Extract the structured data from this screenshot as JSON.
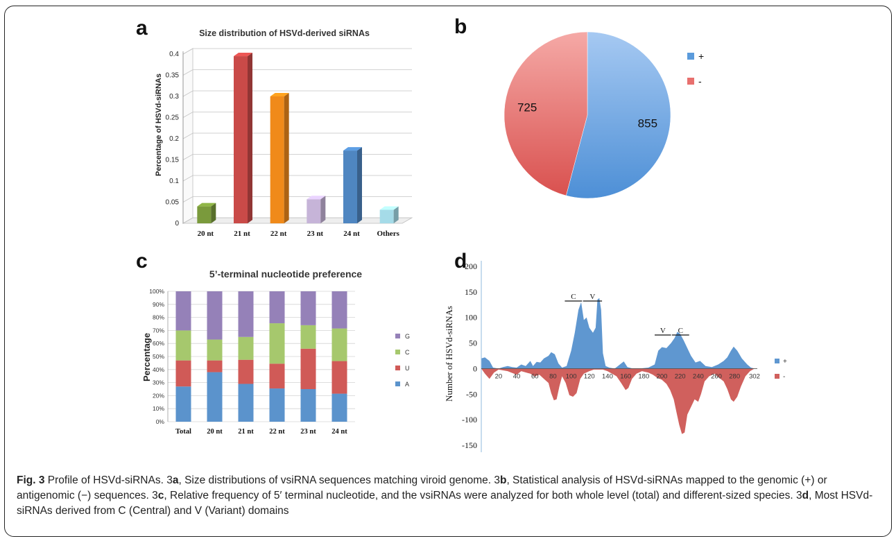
{
  "panels": {
    "a": {
      "letter": "a",
      "chart_data": {
        "type": "bar",
        "title": "Size distribution of HSVd-derived siRNAs",
        "ylabel": "Percentage of HSVd-siRNAs",
        "xlabel": "",
        "categories": [
          "20 nt",
          "21 nt",
          "22 nt",
          "23 nt",
          "24 nt",
          "Others"
        ],
        "values": [
          0.04,
          0.395,
          0.3,
          0.057,
          0.172,
          0.032
        ],
        "colors": [
          "#7a9a3c",
          "#c94a48",
          "#f08a1a",
          "#c6b4d8",
          "#4f86c1",
          "#a5dbe8"
        ],
        "ylim": [
          0,
          0.4
        ],
        "yticks": [
          "0",
          "0.05",
          "0.1",
          "0.15",
          "0.2",
          "0.25",
          "0.3",
          "0.35",
          "0.4"
        ],
        "grid": true,
        "style": "3d"
      }
    },
    "b": {
      "letter": "b",
      "chart_data": {
        "type": "pie",
        "categories": [
          "+",
          "-"
        ],
        "values": [
          855,
          725
        ],
        "colors": [
          "#5b9bdc",
          "#e8706e"
        ],
        "legend": "top-right"
      }
    },
    "c": {
      "letter": "c",
      "chart_data": {
        "type": "bar",
        "stacked": true,
        "title": "5’-terminal nucleotide preference",
        "ylabel": "Percentage",
        "xlabel": "",
        "categories": [
          "Total",
          "20 nt",
          "21 nt",
          "22 nt",
          "23 nt",
          "24 nt"
        ],
        "yticks": [
          "0%",
          "10%",
          "20%",
          "30%",
          "40%",
          "50%",
          "60%",
          "70%",
          "80%",
          "90%",
          "100%"
        ],
        "series": [
          {
            "name": "A",
            "color": "#5b93cc",
            "values": [
              27,
              38,
              29,
              25.5,
              25,
              21.5
            ]
          },
          {
            "name": "U",
            "color": "#d05a57",
            "values": [
              20,
              9,
              18.5,
              19,
              31,
              25
            ]
          },
          {
            "name": "C",
            "color": "#a6c86d",
            "values": [
              23,
              16,
              17.5,
              31,
              18,
              25
            ]
          },
          {
            "name": "G",
            "color": "#9581b8",
            "values": [
              30,
              37,
              35,
              24.5,
              26,
              28.5
            ]
          }
        ],
        "legend_order": [
          "G",
          "C",
          "U",
          "A"
        ],
        "legend": "right"
      }
    },
    "d": {
      "letter": "d",
      "chart_data": {
        "type": "area",
        "ylabel": "Number of HSVd-siRNAs",
        "xlabel": "",
        "xlim": [
          1,
          302
        ],
        "ylim": [
          -150,
          200
        ],
        "yticks": [
          "200",
          "150",
          "100",
          "50",
          "0",
          "-50",
          "-100",
          "-150"
        ],
        "xticks": [
          "20",
          "40",
          "60",
          "80",
          "100",
          "120",
          "140",
          "160",
          "180",
          "200",
          "220",
          "240",
          "260",
          "280",
          "302"
        ],
        "legend": "right",
        "annotations": [
          {
            "label": "C",
            "x_start": 93,
            "x_end": 112
          },
          {
            "label": "V",
            "x_start": 113,
            "x_end": 134
          },
          {
            "label": "V",
            "x_start": 192,
            "x_end": 210
          },
          {
            "label": "C",
            "x_start": 211,
            "x_end": 230
          }
        ],
        "series": [
          {
            "name": "+",
            "color": "#5f97d0",
            "points": [
              [
                1,
                20
              ],
              [
                5,
                22
              ],
              [
                10,
                15
              ],
              [
                14,
                2
              ],
              [
                20,
                0
              ],
              [
                25,
                3
              ],
              [
                30,
                5
              ],
              [
                35,
                3
              ],
              [
                40,
                2
              ],
              [
                45,
                8
              ],
              [
                50,
                5
              ],
              [
                55,
                15
              ],
              [
                58,
                5
              ],
              [
                62,
                13
              ],
              [
                66,
                12
              ],
              [
                70,
                20
              ],
              [
                75,
                25
              ],
              [
                78,
                32
              ],
              [
                82,
                28
              ],
              [
                86,
                10
              ],
              [
                90,
                2
              ],
              [
                95,
                5
              ],
              [
                100,
                35
              ],
              [
                104,
                70
              ],
              [
                108,
                115
              ],
              [
                111,
                130
              ],
              [
                114,
                95
              ],
              [
                117,
                100
              ],
              [
                120,
                80
              ],
              [
                124,
                70
              ],
              [
                127,
                80
              ],
              [
                129,
                135
              ],
              [
                131,
                138
              ],
              [
                133,
                115
              ],
              [
                135,
                30
              ],
              [
                138,
                5
              ],
              [
                142,
                2
              ],
              [
                148,
                0
              ],
              [
                155,
                10
              ],
              [
                158,
                14
              ],
              [
                162,
                3
              ],
              [
                168,
                0
              ],
              [
                175,
                0
              ],
              [
                185,
                2
              ],
              [
                192,
                8
              ],
              [
                196,
                35
              ],
              [
                200,
                42
              ],
              [
                205,
                40
              ],
              [
                210,
                50
              ],
              [
                214,
                60
              ],
              [
                217,
                72
              ],
              [
                220,
                68
              ],
              [
                224,
                55
              ],
              [
                228,
                40
              ],
              [
                232,
                25
              ],
              [
                237,
                12
              ],
              [
                242,
                15
              ],
              [
                248,
                5
              ],
              [
                255,
                3
              ],
              [
                262,
                8
              ],
              [
                268,
                15
              ],
              [
                272,
                22
              ],
              [
                276,
                35
              ],
              [
                279,
                43
              ],
              [
                283,
                35
              ],
              [
                288,
                20
              ],
              [
                294,
                8
              ],
              [
                298,
                2
              ],
              [
                302,
                0
              ]
            ]
          },
          {
            "name": "-",
            "color": "#d0605d",
            "points": [
              [
                1,
                0
              ],
              [
                5,
                -10
              ],
              [
                10,
                -20
              ],
              [
                15,
                -8
              ],
              [
                20,
                -2
              ],
              [
                30,
                -5
              ],
              [
                40,
                -12
              ],
              [
                45,
                -5
              ],
              [
                55,
                -10
              ],
              [
                60,
                -15
              ],
              [
                65,
                -12
              ],
              [
                70,
                -20
              ],
              [
                75,
                -28
              ],
              [
                78,
                -48
              ],
              [
                81,
                -62
              ],
              [
                84,
                -60
              ],
              [
                87,
                -35
              ],
              [
                90,
                -15
              ],
              [
                94,
                -28
              ],
              [
                98,
                -52
              ],
              [
                102,
                -55
              ],
              [
                106,
                -48
              ],
              [
                110,
                -20
              ],
              [
                114,
                -10
              ],
              [
                120,
                -5
              ],
              [
                125,
                -2
              ],
              [
                135,
                -2
              ],
              [
                140,
                -5
              ],
              [
                145,
                -10
              ],
              [
                150,
                -15
              ],
              [
                155,
                -28
              ],
              [
                160,
                -42
              ],
              [
                163,
                -38
              ],
              [
                167,
                -20
              ],
              [
                172,
                -10
              ],
              [
                178,
                -5
              ],
              [
                185,
                -8
              ],
              [
                190,
                -12
              ],
              [
                195,
                -18
              ],
              [
                200,
                -22
              ],
              [
                205,
                -30
              ],
              [
                209,
                -42
              ],
              [
                213,
                -60
              ],
              [
                216,
                -85
              ],
              [
                219,
                -110
              ],
              [
                222,
                -128
              ],
              [
                225,
                -125
              ],
              [
                228,
                -90
              ],
              [
                232,
                -75
              ],
              [
                236,
                -60
              ],
              [
                240,
                -65
              ],
              [
                243,
                -50
              ],
              [
                247,
                -25
              ],
              [
                252,
                -15
              ],
              [
                258,
                -10
              ],
              [
                263,
                -18
              ],
              [
                268,
                -25
              ],
              [
                272,
                -40
              ],
              [
                276,
                -60
              ],
              [
                279,
                -65
              ],
              [
                283,
                -55
              ],
              [
                287,
                -35
              ],
              [
                292,
                -15
              ],
              [
                297,
                -5
              ],
              [
                302,
                0
              ]
            ]
          }
        ]
      }
    }
  },
  "caption": {
    "label": "Fig. 3",
    "parts": [
      {
        "t": " Profile of HSVd-siRNAs. 3",
        "b": false
      },
      {
        "t": "a",
        "b": true
      },
      {
        "t": ", Size distributions of vsiRNA sequences matching viroid genome. 3",
        "b": false
      },
      {
        "t": "b",
        "b": true
      },
      {
        "t": ", Statistical analysis of HSVd-siRNAs mapped to the genomic (+) or antigenomic (−) sequences. 3",
        "b": false
      },
      {
        "t": "c",
        "b": true
      },
      {
        "t": ", Relative frequency of 5′ terminal nucleotide, and the vsiRNAs were analyzed for both whole level (total) and different-sized species. 3",
        "b": false
      },
      {
        "t": "d",
        "b": true
      },
      {
        "t": ", Most HSVd-siRNAs derived from C (Central) and V (Variant) domains",
        "b": false
      }
    ]
  }
}
